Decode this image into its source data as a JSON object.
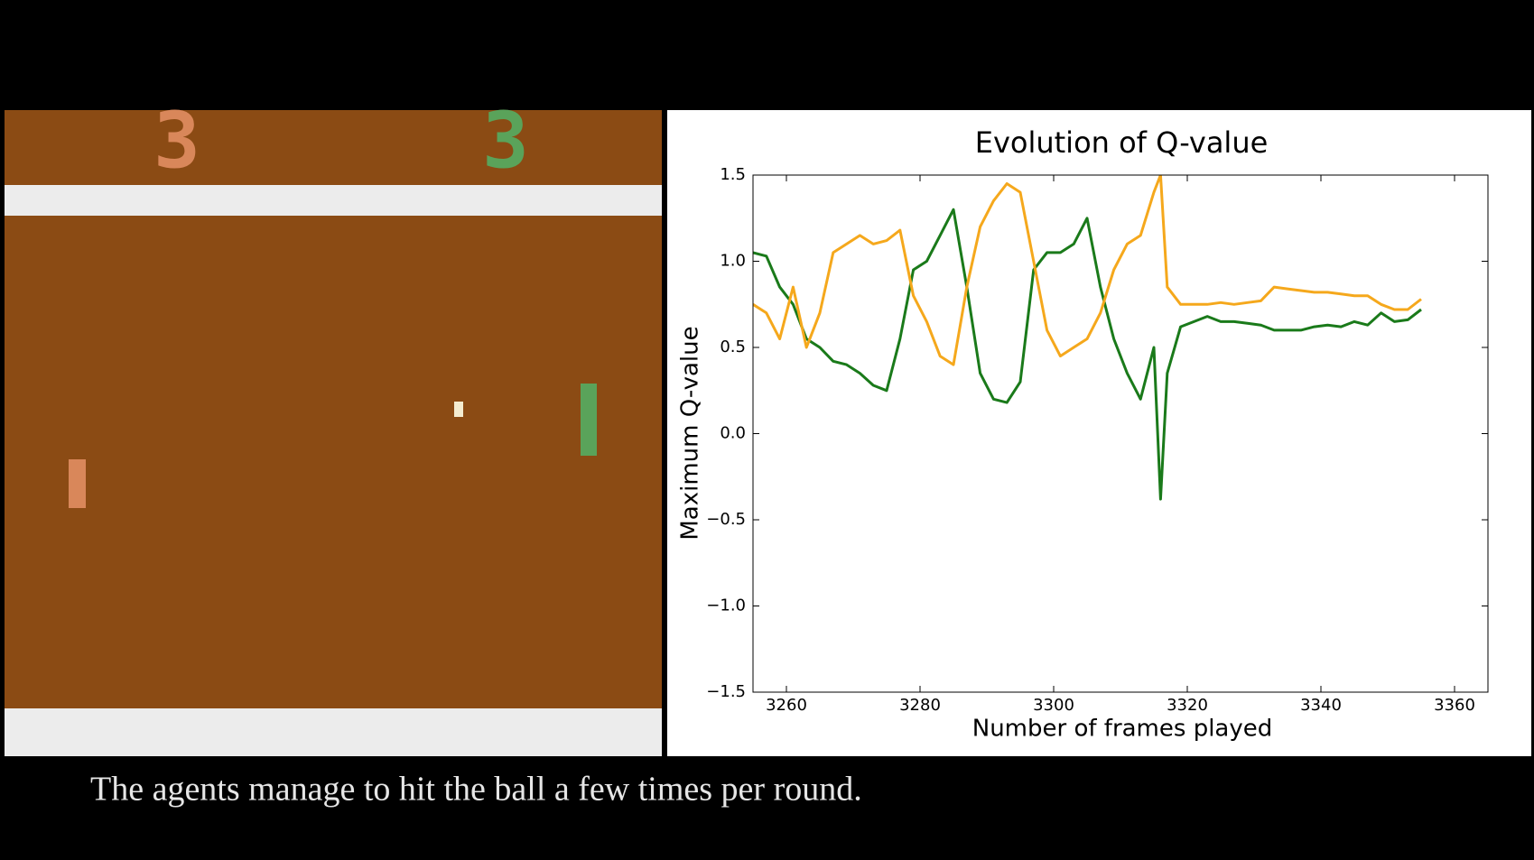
{
  "game": {
    "left_score": "3",
    "right_score": "3"
  },
  "caption": "The agents manage to hit the ball a few times per round.",
  "chart_data": {
    "type": "line",
    "title": "Evolution of Q-value",
    "x_label": "Number of frames played",
    "y_label": "Maximum Q-value",
    "x": [
      3255,
      3257,
      3259,
      3261,
      3263,
      3265,
      3267,
      3269,
      3271,
      3273,
      3275,
      3277,
      3279,
      3281,
      3283,
      3285,
      3287,
      3289,
      3291,
      3293,
      3295,
      3297,
      3299,
      3301,
      3303,
      3305,
      3307,
      3309,
      3311,
      3313,
      3315,
      3316,
      3317,
      3319,
      3321,
      3323,
      3325,
      3327,
      3329,
      3331,
      3333,
      3335,
      3337,
      3339,
      3341,
      3343,
      3345,
      3347,
      3349,
      3351,
      3353,
      3355
    ],
    "series": [
      {
        "color": "#1a7a1a",
        "values": [
          1.05,
          1.03,
          0.85,
          0.75,
          0.55,
          0.5,
          0.42,
          0.4,
          0.35,
          0.28,
          0.25,
          0.55,
          0.95,
          1.0,
          1.15,
          1.3,
          0.85,
          0.35,
          0.2,
          0.18,
          0.3,
          0.95,
          1.05,
          1.05,
          1.1,
          1.25,
          0.85,
          0.55,
          0.35,
          0.2,
          0.5,
          -0.38,
          0.35,
          0.62,
          0.65,
          0.68,
          0.65,
          0.65,
          0.64,
          0.63,
          0.6,
          0.6,
          0.6,
          0.62,
          0.63,
          0.62,
          0.65,
          0.63,
          0.7,
          0.65,
          0.66,
          0.72
        ]
      },
      {
        "color": "#f5a81c",
        "values": [
          0.75,
          0.7,
          0.55,
          0.85,
          0.5,
          0.7,
          1.05,
          1.1,
          1.15,
          1.1,
          1.12,
          1.18,
          0.8,
          0.65,
          0.45,
          0.4,
          0.85,
          1.2,
          1.35,
          1.45,
          1.4,
          1.0,
          0.6,
          0.45,
          0.5,
          0.55,
          0.7,
          0.95,
          1.1,
          1.15,
          1.4,
          1.5,
          0.85,
          0.75,
          0.75,
          0.75,
          0.76,
          0.75,
          0.76,
          0.77,
          0.85,
          0.84,
          0.83,
          0.82,
          0.82,
          0.81,
          0.8,
          0.8,
          0.75,
          0.72,
          0.72,
          0.78
        ]
      }
    ],
    "xlim": [
      3255,
      3365
    ],
    "xticks": [
      3260,
      3280,
      3300,
      3320,
      3340,
      3360
    ],
    "ylim": [
      -1.5,
      1.5
    ],
    "yticks": [
      {
        "value": -1.5,
        "label": "−1.5"
      },
      {
        "value": -1,
        "label": "−1.0"
      },
      {
        "value": -0.5,
        "label": "−0.5"
      },
      {
        "value": 0,
        "label": "0.0"
      },
      {
        "value": 0.5,
        "label": "0.5"
      },
      {
        "value": 1,
        "label": "1.0"
      },
      1.5
    ]
  }
}
